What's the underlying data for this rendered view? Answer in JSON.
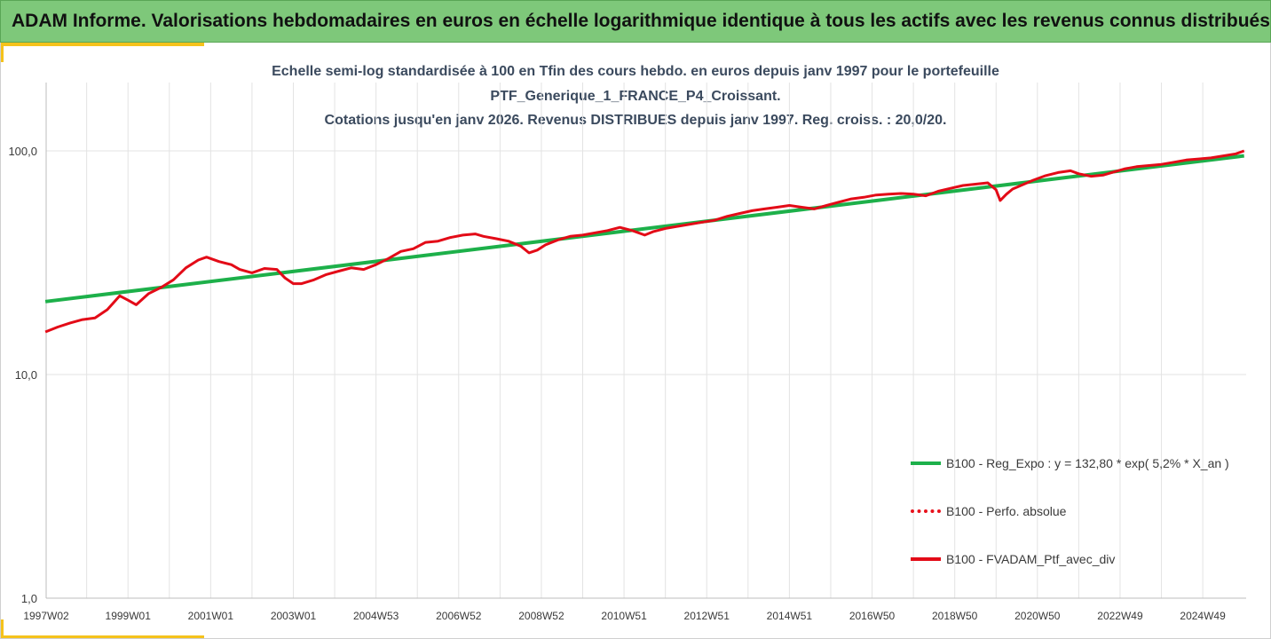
{
  "header": {
    "title": "ADAM Informe. Valorisations hebdomadaires en euros en échelle logarithmique identique à tous les actifs avec les revenus connus distribués"
  },
  "colors": {
    "banner": "#7ec87a",
    "accent": "#f5c21b",
    "regression": "#1db04a",
    "perf": "#e8121c",
    "fvadam": "#e30b17",
    "grid": "#e3e3e3",
    "axis_text": "#3a3a3a"
  },
  "chart_data": {
    "type": "line",
    "title_lines": [
      "Echelle semi-log standardisée à 100 en Tfin des cours hebdo.  en euros depuis janv 1997 pour le portefeuille",
      "PTF_Generique_1_FRANCE_P4_Croissant.",
      "Cotations  jusqu'en janv 2026. Revenus DISTRIBUES depuis janv 1997. Reg. croiss. : 20,0/20."
    ],
    "y_scale": "log",
    "ylim": [
      1,
      200
    ],
    "y_ticks": [
      {
        "value": 1,
        "label": "1,0"
      },
      {
        "value": 10,
        "label": "10,0"
      },
      {
        "value": 100,
        "label": "100,0"
      }
    ],
    "xlim": [
      1997.02,
      2026.05
    ],
    "x_ticks": [
      {
        "value": 1997.02,
        "label": "1997W02"
      },
      {
        "value": 1999.0,
        "label": "1999W01"
      },
      {
        "value": 2001.0,
        "label": "2001W01"
      },
      {
        "value": 2003.0,
        "label": "2003W01"
      },
      {
        "value": 2005.0,
        "label": "2004W53"
      },
      {
        "value": 2007.0,
        "label": "2006W52"
      },
      {
        "value": 2009.0,
        "label": "2008W52"
      },
      {
        "value": 2011.0,
        "label": "2010W51"
      },
      {
        "value": 2013.0,
        "label": "2012W51"
      },
      {
        "value": 2015.0,
        "label": "2014W51"
      },
      {
        "value": 2017.0,
        "label": "2016W50"
      },
      {
        "value": 2019.0,
        "label": "2018W50"
      },
      {
        "value": 2021.0,
        "label": "2020W50"
      },
      {
        "value": 2023.0,
        "label": "2022W49"
      },
      {
        "value": 2025.0,
        "label": "2024W49"
      }
    ],
    "grid": true,
    "legend_position": "bottom-right",
    "series": [
      {
        "name": "B100 - Reg_Expo : y = 132,80 * exp( 5,2% *  X_an )",
        "style": "solid-thick",
        "x": [
          1997.0,
          2026.0
        ],
        "y": [
          21.2,
          95.0
        ]
      },
      {
        "name": "B100 - Perfo. absolue",
        "style": "dotted",
        "x": [],
        "y": []
      },
      {
        "name": "B100 - FVADAM_Ptf_avec_div",
        "style": "solid",
        "x": [
          1997.0,
          1997.3,
          1997.6,
          1997.9,
          1998.2,
          1998.5,
          1998.8,
          1999.0,
          1999.2,
          1999.5,
          1999.8,
          2000.1,
          2000.4,
          2000.7,
          2000.9,
          2001.2,
          2001.5,
          2001.7,
          2002.0,
          2002.3,
          2002.6,
          2002.8,
          2003.0,
          2003.2,
          2003.5,
          2003.8,
          2004.1,
          2004.4,
          2004.7,
          2005.0,
          2005.3,
          2005.6,
          2005.9,
          2006.2,
          2006.5,
          2006.8,
          2007.1,
          2007.4,
          2007.6,
          2007.9,
          2008.2,
          2008.5,
          2008.7,
          2008.9,
          2009.1,
          2009.4,
          2009.7,
          2010.0,
          2010.3,
          2010.6,
          2010.9,
          2011.2,
          2011.5,
          2011.7,
          2012.0,
          2012.3,
          2012.6,
          2012.9,
          2013.2,
          2013.5,
          2013.8,
          2014.1,
          2014.4,
          2014.7,
          2015.0,
          2015.3,
          2015.6,
          2015.9,
          2016.2,
          2016.5,
          2016.8,
          2017.1,
          2017.4,
          2017.7,
          2018.0,
          2018.3,
          2018.6,
          2018.9,
          2019.2,
          2019.5,
          2019.8,
          2020.0,
          2020.1,
          2020.25,
          2020.4,
          2020.6,
          2020.9,
          2021.2,
          2021.5,
          2021.8,
          2022.0,
          2022.3,
          2022.6,
          2022.8,
          2023.1,
          2023.4,
          2023.7,
          2024.0,
          2024.3,
          2024.6,
          2024.9,
          2025.2,
          2025.5,
          2025.8,
          2026.0
        ],
        "y": [
          15.5,
          16.3,
          17.0,
          17.6,
          17.9,
          19.5,
          22.5,
          21.5,
          20.5,
          23.0,
          24.5,
          26.5,
          30.0,
          32.5,
          33.5,
          32.0,
          31.0,
          29.5,
          28.5,
          29.8,
          29.5,
          27.0,
          25.5,
          25.5,
          26.5,
          28.0,
          29.0,
          30.0,
          29.5,
          31.0,
          33.0,
          35.5,
          36.5,
          39.0,
          39.5,
          41.0,
          42.0,
          42.5,
          41.5,
          40.5,
          39.5,
          37.5,
          35.0,
          36.0,
          38.0,
          40.0,
          41.5,
          42.0,
          43.0,
          44.0,
          45.5,
          44.0,
          42.0,
          43.5,
          45.0,
          46.0,
          47.0,
          48.0,
          49.0,
          51.0,
          52.5,
          54.0,
          55.0,
          56.0,
          57.0,
          56.0,
          55.0,
          57.0,
          59.0,
          61.0,
          62.0,
          63.5,
          64.0,
          64.5,
          64.0,
          63.0,
          66.0,
          68.0,
          70.0,
          71.0,
          72.0,
          67.0,
          60.0,
          64.0,
          67.5,
          70.0,
          74.0,
          77.5,
          80.0,
          81.5,
          79.0,
          77.0,
          78.0,
          80.0,
          83.0,
          85.0,
          86.0,
          87.0,
          89.0,
          91.0,
          92.0,
          93.0,
          95.0,
          97.0,
          100.0
        ]
      }
    ]
  }
}
